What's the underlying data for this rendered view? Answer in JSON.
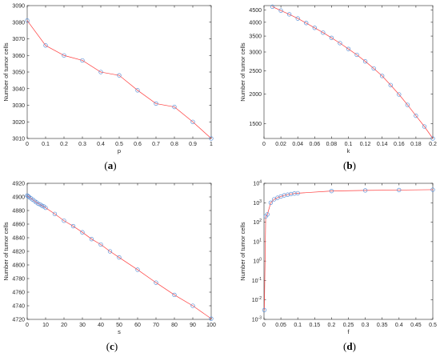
{
  "figure": {
    "marker_color": "#5b8fd6",
    "line_color": "#ff3b3b",
    "axis_color": "#262626"
  },
  "chart_data": [
    {
      "panel": "a",
      "caption": "(a)",
      "type": "line",
      "xlabel": "p",
      "ylabel": "Number of tumor cells",
      "xlim": [
        0,
        1
      ],
      "ylim": [
        3010,
        3090
      ],
      "xticks": [
        0,
        0.1,
        0.2,
        0.3,
        0.4,
        0.5,
        0.6,
        0.7,
        0.8,
        0.9,
        1
      ],
      "xticklabels": [
        "0",
        "0.1",
        "0.2",
        "0.3",
        "0.4",
        "0.5",
        "0.6",
        "0.7",
        "0.8",
        "0.9",
        "1"
      ],
      "yticks": [
        3010,
        3020,
        3030,
        3040,
        3050,
        3060,
        3070,
        3080,
        3090
      ],
      "yticklabels": [
        "3010",
        "3020",
        "3030",
        "3040",
        "3050",
        "3060",
        "3070",
        "3080",
        "3090"
      ],
      "yscale": "linear",
      "x": [
        0,
        0.1,
        0.2,
        0.3,
        0.4,
        0.5,
        0.6,
        0.7,
        0.8,
        0.9,
        1
      ],
      "y": [
        3081,
        3066,
        3060,
        3057,
        3050,
        3048,
        3039,
        3031,
        3029,
        3020,
        3010
      ]
    },
    {
      "panel": "b",
      "caption": "(b)",
      "type": "line",
      "xlabel": "k",
      "ylabel": "Number of tumor cells",
      "xlim": [
        0,
        0.2
      ],
      "ylim": [
        1300,
        4700
      ],
      "xticks": [
        0,
        0.02,
        0.04,
        0.06,
        0.08,
        0.1,
        0.12,
        0.14,
        0.16,
        0.18,
        0.2
      ],
      "xticklabels": [
        "0",
        "0.02",
        "0.04",
        "0.06",
        "0.08",
        "0.1",
        "0.12",
        "0.14",
        "0.16",
        "0.18",
        "0.2"
      ],
      "yticks": [
        1500,
        2000,
        2500,
        3000,
        3500,
        4000,
        4500
      ],
      "yticklabels": [
        "1500",
        "2000",
        "2500",
        "3000",
        "3500",
        "4000",
        "4500"
      ],
      "yscale": "log",
      "x": [
        0.01,
        0.02,
        0.03,
        0.04,
        0.05,
        0.06,
        0.07,
        0.08,
        0.09,
        0.1,
        0.11,
        0.12,
        0.13,
        0.14,
        0.15,
        0.16,
        0.17,
        0.18,
        0.19,
        0.2
      ],
      "y": [
        4650,
        4480,
        4320,
        4150,
        3970,
        3790,
        3620,
        3440,
        3270,
        3090,
        2920,
        2740,
        2560,
        2380,
        2180,
        1990,
        1800,
        1620,
        1460,
        1300
      ]
    },
    {
      "panel": "c",
      "caption": "(c)",
      "type": "line",
      "xlabel": "s",
      "ylabel": "Number of tumor cells",
      "xlim": [
        0,
        100
      ],
      "ylim": [
        4720,
        4920
      ],
      "xticks": [
        0,
        10,
        20,
        30,
        40,
        50,
        60,
        70,
        80,
        90,
        100
      ],
      "xticklabels": [
        "0",
        "10",
        "20",
        "30",
        "40",
        "50",
        "60",
        "70",
        "80",
        "90",
        "100"
      ],
      "yticks": [
        4720,
        4740,
        4760,
        4780,
        4800,
        4820,
        4840,
        4860,
        4880,
        4900,
        4920
      ],
      "yticklabels": [
        "4720",
        "4740",
        "4760",
        "4780",
        "4800",
        "4820",
        "4840",
        "4860",
        "4880",
        "4900",
        "4920"
      ],
      "yscale": "linear",
      "x": [
        0,
        0.5,
        1,
        2,
        3,
        4,
        5,
        6,
        7,
        8,
        9,
        10,
        15,
        20,
        25,
        30,
        35,
        40,
        45,
        50,
        60,
        70,
        80,
        90,
        100
      ],
      "y": [
        4902,
        4901,
        4900,
        4898,
        4896,
        4894,
        4892,
        4890,
        4889,
        4887,
        4886,
        4884,
        4875,
        4865,
        4857,
        4848,
        4838,
        4830,
        4820,
        4811,
        4793,
        4774,
        4756,
        4740,
        4721
      ]
    },
    {
      "panel": "d",
      "caption": "(d)",
      "type": "line",
      "xlabel": "f",
      "ylabel": "Number of tumor cells",
      "xlim": [
        0,
        0.5
      ],
      "ylim": [
        0.001,
        10000
      ],
      "xticks": [
        0,
        0.05,
        0.1,
        0.15,
        0.2,
        0.25,
        0.3,
        0.35,
        0.4,
        0.45,
        0.5
      ],
      "xticklabels": [
        "0",
        "0.05",
        "0.1",
        "0.15",
        "0.2",
        "0.25",
        "0.3",
        "0.35",
        "0.4",
        "0.45",
        "0.5"
      ],
      "yticks": [
        0.001,
        0.01,
        0.1,
        1,
        10,
        100,
        1000,
        10000
      ],
      "yticklabels": [
        {
          "base": "10",
          "exp": "-3"
        },
        {
          "base": "10",
          "exp": "-2"
        },
        {
          "base": "10",
          "exp": "-1"
        },
        {
          "base": "10",
          "exp": "0"
        },
        {
          "base": "10",
          "exp": "1"
        },
        {
          "base": "10",
          "exp": "2"
        },
        {
          "base": "10",
          "exp": "3"
        },
        {
          "base": "10",
          "exp": "4"
        }
      ],
      "yscale": "log",
      "x": [
        0.001,
        0.005,
        0.01,
        0.02,
        0.03,
        0.04,
        0.05,
        0.06,
        0.07,
        0.08,
        0.09,
        0.1,
        0.2,
        0.3,
        0.4,
        0.5
      ],
      "y": [
        0.003,
        200,
        250,
        1000,
        1500,
        1800,
        2100,
        2400,
        2600,
        2800,
        3000,
        3100,
        4000,
        4300,
        4500,
        4700
      ]
    }
  ]
}
